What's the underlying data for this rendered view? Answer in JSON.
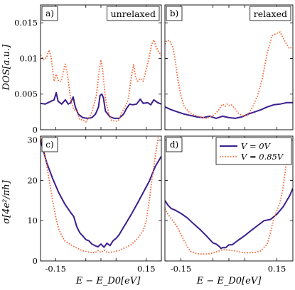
{
  "colors": {
    "V0": "#3b1e8c",
    "V085": "#f06a3a",
    "axis": "#000000"
  },
  "chart_data": [
    {
      "type": "line",
      "panel": "a)",
      "box_label": "unrelaxed",
      "ylabel": "DOS[a.u.]",
      "ylim": [
        0,
        0.0175
      ],
      "yticks": [
        "0",
        "0.005",
        "0.01",
        "0.015"
      ],
      "xlim": [
        -0.2,
        0.2
      ],
      "series": [
        {
          "values": [
            [
              -0.2,
              0.0037
            ],
            [
              -0.185,
              0.0036
            ],
            [
              -0.17,
              0.0039
            ],
            [
              -0.155,
              0.0042
            ],
            [
              -0.148,
              0.0052
            ],
            [
              -0.142,
              0.004
            ],
            [
              -0.13,
              0.0036
            ],
            [
              -0.118,
              0.0042
            ],
            [
              -0.108,
              0.0036
            ],
            [
              -0.1,
              0.0038
            ],
            [
              -0.092,
              0.0046
            ],
            [
              -0.085,
              0.0032
            ],
            [
              -0.075,
              0.0022
            ],
            [
              -0.06,
              0.0017
            ],
            [
              -0.045,
              0.0016
            ],
            [
              -0.03,
              0.0017
            ],
            [
              -0.018,
              0.0022
            ],
            [
              -0.008,
              0.0032
            ],
            [
              -0.003,
              0.0048
            ],
            [
              0.003,
              0.005
            ],
            [
              0.008,
              0.0045
            ],
            [
              0.015,
              0.0026
            ],
            [
              0.03,
              0.0018
            ],
            [
              0.045,
              0.0016
            ],
            [
              0.06,
              0.0016
            ],
            [
              0.075,
              0.0022
            ],
            [
              0.085,
              0.003
            ],
            [
              0.095,
              0.0036
            ],
            [
              0.105,
              0.0035
            ],
            [
              0.118,
              0.0036
            ],
            [
              0.13,
              0.0043
            ],
            [
              0.14,
              0.0037
            ],
            [
              0.155,
              0.0038
            ],
            [
              0.165,
              0.0035
            ],
            [
              0.175,
              0.0042
            ],
            [
              0.188,
              0.0038
            ],
            [
              0.2,
              0.0036
            ]
          ]
        },
        {
          "values": [
            [
              -0.2,
              0.0105
            ],
            [
              -0.19,
              0.0098
            ],
            [
              -0.18,
              0.0101
            ],
            [
              -0.172,
              0.0112
            ],
            [
              -0.165,
              0.0102
            ],
            [
              -0.155,
              0.0068
            ],
            [
              -0.148,
              0.0078
            ],
            [
              -0.14,
              0.0068
            ],
            [
              -0.132,
              0.0068
            ],
            [
              -0.125,
              0.008
            ],
            [
              -0.118,
              0.0092
            ],
            [
              -0.11,
              0.0075
            ],
            [
              -0.1,
              0.0042
            ],
            [
              -0.09,
              0.0028
            ],
            [
              -0.08,
              0.0026
            ],
            [
              -0.07,
              0.0014
            ],
            [
              -0.06,
              0.0014
            ],
            [
              -0.05,
              0.0011
            ],
            [
              -0.04,
              0.0016
            ],
            [
              -0.03,
              0.0025
            ],
            [
              -0.015,
              0.0048
            ],
            [
              -0.005,
              0.0086
            ],
            [
              0.0,
              0.0098
            ],
            [
              0.006,
              0.0082
            ],
            [
              0.015,
              0.0043
            ],
            [
              0.025,
              0.0024
            ],
            [
              0.035,
              0.0013
            ],
            [
              0.05,
              0.0012
            ],
            [
              0.06,
              0.0014
            ],
            [
              0.07,
              0.0025
            ],
            [
              0.08,
              0.0032
            ],
            [
              0.09,
              0.0042
            ],
            [
              0.1,
              0.0072
            ],
            [
              0.108,
              0.0092
            ],
            [
              0.115,
              0.0073
            ],
            [
              0.122,
              0.0068
            ],
            [
              0.13,
              0.0072
            ],
            [
              0.14,
              0.0068
            ],
            [
              0.15,
              0.0085
            ],
            [
              0.16,
              0.0102
            ],
            [
              0.168,
              0.012
            ],
            [
              0.175,
              0.0126
            ],
            [
              0.182,
              0.0117
            ],
            [
              0.19,
              0.011
            ],
            [
              0.2,
              0.0104
            ]
          ]
        }
      ]
    },
    {
      "type": "line",
      "panel": "b)",
      "box_label": "relaxed",
      "ylim": [
        0,
        0.0175
      ],
      "xlim": [
        -0.2,
        0.2
      ],
      "series": [
        {
          "values": [
            [
              -0.2,
              0.0032
            ],
            [
              -0.18,
              0.0028
            ],
            [
              -0.16,
              0.0025
            ],
            [
              -0.14,
              0.0022
            ],
            [
              -0.12,
              0.002
            ],
            [
              -0.1,
              0.0018
            ],
            [
              -0.08,
              0.0017
            ],
            [
              -0.06,
              0.0019
            ],
            [
              -0.04,
              0.0016
            ],
            [
              -0.02,
              0.0019
            ],
            [
              0.0,
              0.0017
            ],
            [
              0.02,
              0.0016
            ],
            [
              0.04,
              0.0018
            ],
            [
              0.06,
              0.0022
            ],
            [
              0.08,
              0.0025
            ],
            [
              0.1,
              0.0028
            ],
            [
              0.12,
              0.0032
            ],
            [
              0.14,
              0.0035
            ],
            [
              0.16,
              0.0036
            ],
            [
              0.18,
              0.0038
            ],
            [
              0.2,
              0.0038
            ]
          ]
        },
        {
          "values": [
            [
              -0.2,
              0.012
            ],
            [
              -0.195,
              0.0125
            ],
            [
              -0.185,
              0.0125
            ],
            [
              -0.175,
              0.0115
            ],
            [
              -0.168,
              0.0098
            ],
            [
              -0.16,
              0.0072
            ],
            [
              -0.15,
              0.0048
            ],
            [
              -0.14,
              0.0033
            ],
            [
              -0.125,
              0.0025
            ],
            [
              -0.11,
              0.0021
            ],
            [
              -0.09,
              0.0018
            ],
            [
              -0.07,
              0.0016
            ],
            [
              -0.05,
              0.002
            ],
            [
              -0.035,
              0.0026
            ],
            [
              -0.02,
              0.0036
            ],
            [
              -0.012,
              0.0033
            ],
            [
              -0.005,
              0.0036
            ],
            [
              0.0,
              0.0034
            ],
            [
              0.008,
              0.0035
            ],
            [
              0.02,
              0.0029
            ],
            [
              0.03,
              0.0023
            ],
            [
              0.045,
              0.0019
            ],
            [
              0.06,
              0.0021
            ],
            [
              0.075,
              0.0033
            ],
            [
              0.09,
              0.0048
            ],
            [
              0.105,
              0.0073
            ],
            [
              0.12,
              0.0108
            ],
            [
              0.135,
              0.0132
            ],
            [
              0.15,
              0.0135
            ],
            [
              0.16,
              0.0137
            ],
            [
              0.175,
              0.0124
            ],
            [
              0.188,
              0.0114
            ],
            [
              0.2,
              0.0116
            ]
          ]
        }
      ]
    },
    {
      "type": "line",
      "panel": "c)",
      "ylabel": "σ[4e²/πh]",
      "xlabel": "E − E_D0[eV]",
      "ylim": [
        0,
        31
      ],
      "yticks": [
        "0",
        "10",
        "20",
        "30"
      ],
      "xlim": [
        -0.2,
        0.2
      ],
      "xticks": [
        "-0.15",
        "-0.05",
        "0",
        "0.05",
        "0.15"
      ],
      "series": [
        {
          "values": [
            [
              -0.2,
              30
            ],
            [
              -0.18,
              24.5
            ],
            [
              -0.16,
              20.5
            ],
            [
              -0.14,
              17
            ],
            [
              -0.12,
              14.2
            ],
            [
              -0.1,
              12
            ],
            [
              -0.09,
              11
            ],
            [
              -0.08,
              8.5
            ],
            [
              -0.07,
              7
            ],
            [
              -0.06,
              6.2
            ],
            [
              -0.05,
              5.3
            ],
            [
              -0.04,
              5
            ],
            [
              -0.03,
              4.2
            ],
            [
              -0.02,
              3.8
            ],
            [
              -0.01,
              3.5
            ],
            [
              0.0,
              4.2
            ],
            [
              0.01,
              3.4
            ],
            [
              0.02,
              4.4
            ],
            [
              0.03,
              3.8
            ],
            [
              0.04,
              5
            ],
            [
              0.05,
              5.6
            ],
            [
              0.06,
              6.5
            ],
            [
              0.08,
              9
            ],
            [
              0.1,
              11.5
            ],
            [
              0.12,
              14.2
            ],
            [
              0.14,
              17
            ],
            [
              0.16,
              19.8
            ],
            [
              0.18,
              23.5
            ],
            [
              0.2,
              26
            ]
          ]
        },
        {
          "values": [
            [
              -0.2,
              31
            ],
            [
              -0.19,
              28
            ],
            [
              -0.18,
              24
            ],
            [
              -0.17,
              19.5
            ],
            [
              -0.16,
              15
            ],
            [
              -0.15,
              11
            ],
            [
              -0.14,
              8
            ],
            [
              -0.13,
              6.3
            ],
            [
              -0.12,
              5
            ],
            [
              -0.1,
              4
            ],
            [
              -0.08,
              3.2
            ],
            [
              -0.06,
              2.5
            ],
            [
              -0.04,
              2.2
            ],
            [
              -0.02,
              2
            ],
            [
              -0.01,
              2.6
            ],
            [
              0.0,
              2.1
            ],
            [
              0.01,
              2.7
            ],
            [
              0.02,
              2.1
            ],
            [
              0.04,
              2.2
            ],
            [
              0.06,
              2.6
            ],
            [
              0.08,
              3.3
            ],
            [
              0.1,
              4
            ],
            [
              0.12,
              5.5
            ],
            [
              0.14,
              7.5
            ],
            [
              0.15,
              10
            ],
            [
              0.16,
              15
            ],
            [
              0.17,
              21
            ],
            [
              0.18,
              26
            ],
            [
              0.19,
              31
            ]
          ]
        }
      ]
    },
    {
      "type": "line",
      "panel": "d)",
      "xlabel": "E − E_D0[eV]",
      "ylim": [
        0,
        31
      ],
      "xlim": [
        -0.2,
        0.2
      ],
      "xticks": [
        "-0.15",
        "-0.05",
        "0",
        "0.05",
        "0.15"
      ],
      "legend": {
        "position": "top-right",
        "entries": [
          "V = 0V",
          "V = 0.85V"
        ]
      },
      "series": [
        {
          "name": "V = 0V",
          "values": [
            [
              -0.2,
              15
            ],
            [
              -0.19,
              13.8
            ],
            [
              -0.18,
              13
            ],
            [
              -0.17,
              12.7
            ],
            [
              -0.15,
              11.8
            ],
            [
              -0.13,
              10.7
            ],
            [
              -0.11,
              9.2
            ],
            [
              -0.09,
              7.8
            ],
            [
              -0.07,
              6.2
            ],
            [
              -0.05,
              4.5
            ],
            [
              -0.04,
              4.2
            ],
            [
              -0.03,
              3.6
            ],
            [
              -0.025,
              3.1
            ],
            [
              -0.02,
              3.3
            ],
            [
              -0.01,
              3.3
            ],
            [
              0.0,
              4
            ],
            [
              0.01,
              4
            ],
            [
              0.03,
              5.2
            ],
            [
              0.05,
              6.3
            ],
            [
              0.07,
              7.6
            ],
            [
              0.09,
              8.8
            ],
            [
              0.11,
              10
            ],
            [
              0.13,
              10.3
            ],
            [
              0.15,
              11.6
            ],
            [
              0.17,
              13.5
            ],
            [
              0.19,
              16.2
            ],
            [
              0.2,
              18
            ]
          ]
        },
        {
          "name": "V = 0.85V",
          "values": [
            [
              -0.2,
              13
            ],
            [
              -0.19,
              11.5
            ],
            [
              -0.18,
              10.5
            ],
            [
              -0.17,
              9.5
            ],
            [
              -0.16,
              8.2
            ],
            [
              -0.15,
              6.6
            ],
            [
              -0.14,
              5
            ],
            [
              -0.13,
              3.5
            ],
            [
              -0.12,
              2.4
            ],
            [
              -0.1,
              1.8
            ],
            [
              -0.08,
              1.7
            ],
            [
              -0.06,
              1.8
            ],
            [
              -0.04,
              2.2
            ],
            [
              -0.02,
              2.8
            ],
            [
              0.0,
              2.7
            ],
            [
              0.02,
              2.5
            ],
            [
              0.04,
              2.1
            ],
            [
              0.06,
              2
            ],
            [
              0.08,
              2.1
            ],
            [
              0.1,
              2.5
            ],
            [
              0.12,
              4.2
            ],
            [
              0.13,
              7
            ],
            [
              0.14,
              10.5
            ],
            [
              0.15,
              12.5
            ],
            [
              0.16,
              14.5
            ],
            [
              0.17,
              18.5
            ],
            [
              0.18,
              24.5
            ],
            [
              0.19,
              31
            ]
          ]
        }
      ]
    }
  ]
}
